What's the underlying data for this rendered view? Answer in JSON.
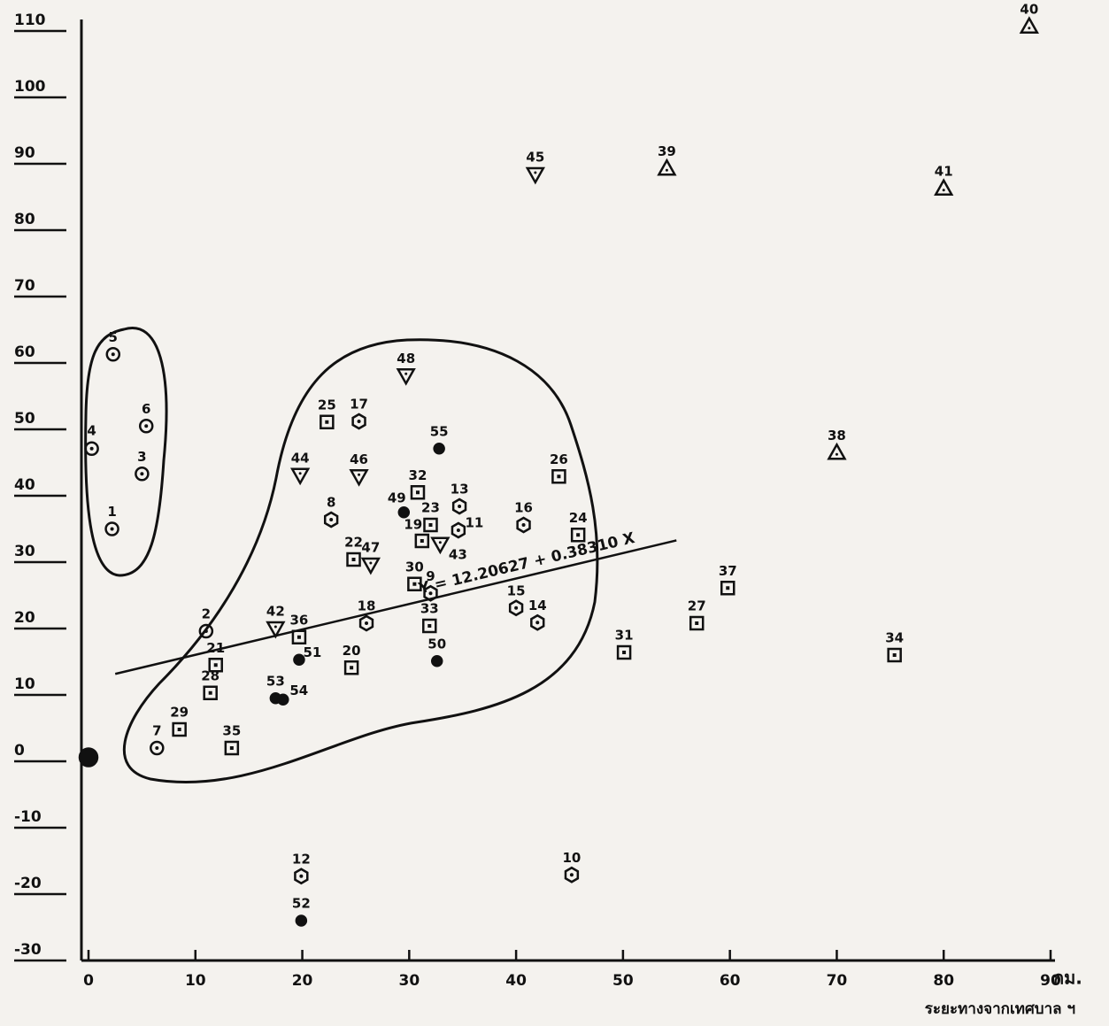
{
  "chart_data": {
    "type": "scatter",
    "x_label": "ระยะทางจากเทศบาล ฯ",
    "x_unit": "กม.",
    "xlim": [
      0,
      90
    ],
    "xticks": [
      0,
      10,
      20,
      30,
      40,
      50,
      60,
      70,
      80,
      90
    ],
    "ylim": [
      -30,
      110
    ],
    "yticks": [
      -30,
      -20,
      -10,
      0,
      10,
      20,
      30,
      40,
      50,
      60,
      70,
      80,
      90,
      100,
      110
    ],
    "color": "#111111",
    "points": [
      {
        "label": "1",
        "x": 2.2,
        "y": 35,
        "marker": "circle"
      },
      {
        "label": "2",
        "x": 11,
        "y": 19.6,
        "marker": "circle"
      },
      {
        "label": "3",
        "x": 5,
        "y": 43.3,
        "marker": "circle"
      },
      {
        "label": "4",
        "x": 0.3,
        "y": 47.1,
        "marker": "circle"
      },
      {
        "label": "5",
        "x": 2.3,
        "y": 61.3,
        "marker": "circle"
      },
      {
        "label": "6",
        "x": 5.4,
        "y": 50.5,
        "marker": "circle"
      },
      {
        "label": "7",
        "x": 6.4,
        "y": 2,
        "marker": "circle"
      },
      {
        "label": "8",
        "x": 22.7,
        "y": 36.4,
        "marker": "hexagon"
      },
      {
        "label": "9",
        "x": 32,
        "y": 25.3,
        "marker": "hexagon"
      },
      {
        "label": "10",
        "x": 45.2,
        "y": -17.1,
        "marker": "hexagon"
      },
      {
        "label": "11",
        "x": 34.6,
        "y": 34.8,
        "marker": "hexagon"
      },
      {
        "label": "12",
        "x": 19.9,
        "y": -17.3,
        "marker": "hexagon"
      },
      {
        "label": "13",
        "x": 34.7,
        "y": 38.4,
        "marker": "hexagon"
      },
      {
        "label": "14",
        "x": 42,
        "y": 20.9,
        "marker": "hexagon"
      },
      {
        "label": "15",
        "x": 40,
        "y": 23.1,
        "marker": "hexagon"
      },
      {
        "label": "16",
        "x": 40.7,
        "y": 35.6,
        "marker": "hexagon"
      },
      {
        "label": "17",
        "x": 25.3,
        "y": 51.2,
        "marker": "hexagon"
      },
      {
        "label": "18",
        "x": 26,
        "y": 20.8,
        "marker": "hexagon"
      },
      {
        "label": "19",
        "x": 31.2,
        "y": 33.2,
        "marker": "square"
      },
      {
        "label": "20",
        "x": 24.6,
        "y": 14.1,
        "marker": "square"
      },
      {
        "label": "21",
        "x": 11.9,
        "y": 14.5,
        "marker": "square"
      },
      {
        "label": "22",
        "x": 24.8,
        "y": 30.4,
        "marker": "square"
      },
      {
        "label": "23",
        "x": 32,
        "y": 35.6,
        "marker": "square"
      },
      {
        "label": "24",
        "x": 45.8,
        "y": 34.1,
        "marker": "square"
      },
      {
        "label": "25",
        "x": 22.3,
        "y": 51.1,
        "marker": "square"
      },
      {
        "label": "26",
        "x": 44,
        "y": 42.9,
        "marker": "square"
      },
      {
        "label": "27",
        "x": 56.9,
        "y": 20.8,
        "marker": "square"
      },
      {
        "label": "28",
        "x": 11.4,
        "y": 10.3,
        "marker": "square"
      },
      {
        "label": "29",
        "x": 8.5,
        "y": 4.8,
        "marker": "square"
      },
      {
        "label": "30",
        "x": 30.5,
        "y": 26.7,
        "marker": "square"
      },
      {
        "label": "31",
        "x": 50.1,
        "y": 16.4,
        "marker": "square"
      },
      {
        "label": "32",
        "x": 30.8,
        "y": 40.5,
        "marker": "square"
      },
      {
        "label": "33",
        "x": 31.9,
        "y": 20.4,
        "marker": "square"
      },
      {
        "label": "34",
        "x": 75.4,
        "y": 16,
        "marker": "square"
      },
      {
        "label": "35",
        "x": 13.4,
        "y": 2,
        "marker": "square"
      },
      {
        "label": "36",
        "x": 19.7,
        "y": 18.7,
        "marker": "square"
      },
      {
        "label": "37",
        "x": 59.8,
        "y": 26.1,
        "marker": "square"
      },
      {
        "label": "38",
        "x": 70,
        "y": 46.5,
        "marker": "triangle-up"
      },
      {
        "label": "39",
        "x": 54.1,
        "y": 89.3,
        "marker": "triangle-up"
      },
      {
        "label": "40",
        "x": 88,
        "y": 110.7,
        "marker": "triangle-up"
      },
      {
        "label": "41",
        "x": 80,
        "y": 86.3,
        "marker": "triangle-up"
      },
      {
        "label": "42",
        "x": 17.5,
        "y": 20,
        "marker": "triangle-down"
      },
      {
        "label": "43",
        "x": 32.9,
        "y": 32.7,
        "marker": "triangle-down"
      },
      {
        "label": "44",
        "x": 19.8,
        "y": 43.1,
        "marker": "triangle-down"
      },
      {
        "label": "45",
        "x": 41.8,
        "y": 88.4,
        "marker": "triangle-down"
      },
      {
        "label": "46",
        "x": 25.3,
        "y": 42.9,
        "marker": "triangle-down"
      },
      {
        "label": "47",
        "x": 26.4,
        "y": 29.6,
        "marker": "triangle-down"
      },
      {
        "label": "48",
        "x": 29.7,
        "y": 58.1,
        "marker": "triangle-down"
      },
      {
        "label": "49",
        "x": 29.5,
        "y": 37.5,
        "marker": "dot"
      },
      {
        "label": "50",
        "x": 32.6,
        "y": 15.1,
        "marker": "dot"
      },
      {
        "label": "51",
        "x": 19.7,
        "y": 15.3,
        "marker": "dot"
      },
      {
        "label": "52",
        "x": 19.9,
        "y": -24,
        "marker": "dot"
      },
      {
        "label": "53",
        "x": 17.5,
        "y": 9.5,
        "marker": "dot"
      },
      {
        "label": "54",
        "x": 18.2,
        "y": 9.3,
        "marker": "dot"
      },
      {
        "label": "55",
        "x": 32.8,
        "y": 47.1,
        "marker": "dot"
      },
      {
        "label": null,
        "x": 0,
        "y": 0.6,
        "marker": "big-dot"
      }
    ],
    "regression": {
      "label": "Y = 12.20627 + 0.38310 X",
      "intercept": 12.20627,
      "slope": 0.3831,
      "x_range": [
        2.5,
        55
      ]
    }
  }
}
